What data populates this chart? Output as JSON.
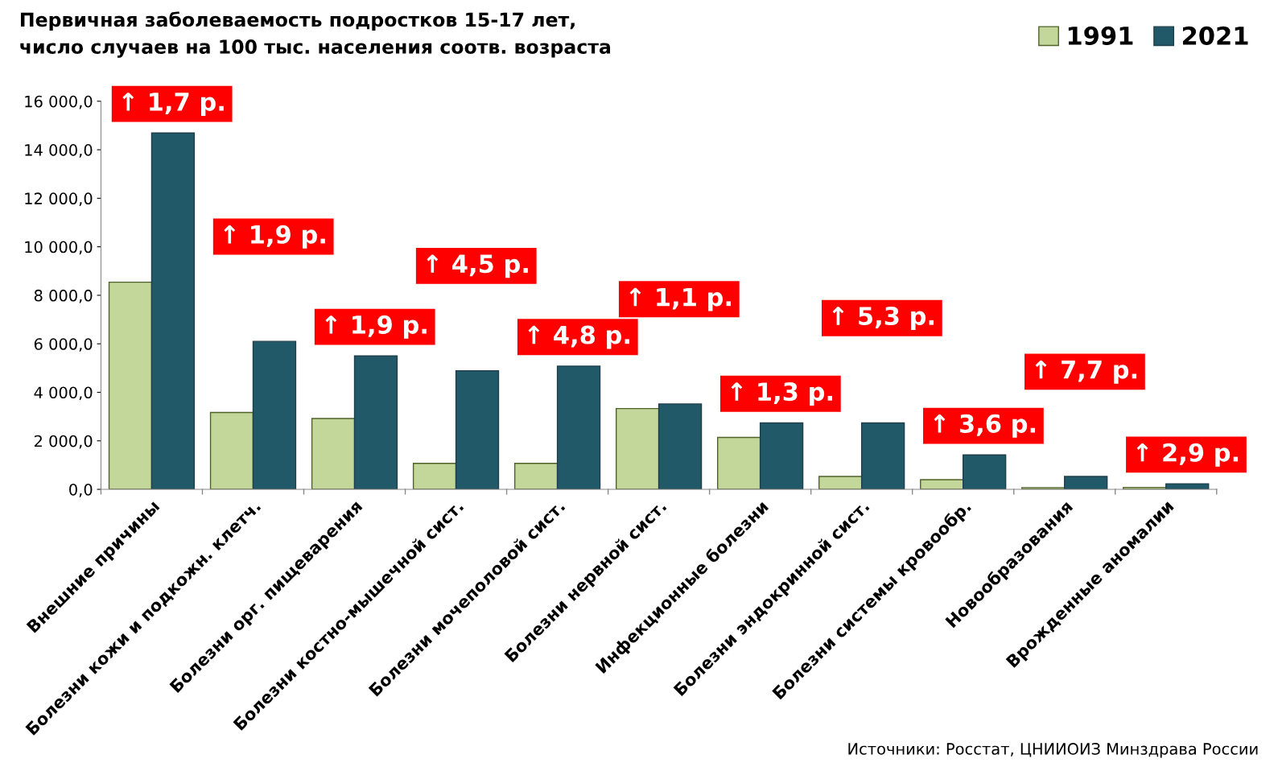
{
  "chart_data": {
    "type": "bar",
    "title": "Первичная заболеваемость подростков 15-17 лет,\nчисло случаев на 100 тыс. населения соотв. возраста",
    "categories": [
      "Внешние причины",
      "Болезни кожи и подкожн. клетч.",
      "Болезни орг. пищеварения",
      "Болезни костно-мышечной сист.",
      "Болезни мочеполовой сист.",
      "Болезни нервной сист.",
      "Инфекционные болезни",
      "Болезни эндокринной сист.",
      "Болезни системы кровообр.",
      "Новообразования",
      "Врожденные аномалии"
    ],
    "series": [
      {
        "name": "1991",
        "color": "#c4d79b",
        "values": [
          8540,
          3170,
          2920,
          1070,
          1070,
          3330,
          2140,
          530,
          400,
          70,
          80
        ]
      },
      {
        "name": "2021",
        "color": "#215968",
        "values": [
          14690,
          6100,
          5500,
          4890,
          5080,
          3520,
          2740,
          2740,
          1420,
          530,
          230
        ]
      }
    ],
    "ylim": [
      0,
      16000
    ],
    "yticks": [
      {
        "value": 0,
        "label": "0,0"
      },
      {
        "value": 2000,
        "label": "2 000,0"
      },
      {
        "value": 4000,
        "label": "4 000,0"
      },
      {
        "value": 6000,
        "label": "6 000,0"
      },
      {
        "value": 8000,
        "label": "8 000,0"
      },
      {
        "value": 10000,
        "label": "10 000,0"
      },
      {
        "value": 12000,
        "label": "12 000,0"
      },
      {
        "value": 14000,
        "label": "14 000,0"
      },
      {
        "value": 16000,
        "label": "16 000,0"
      }
    ],
    "annotations": [
      "↑ 1,7 р.",
      "↑ 1,9 р.",
      "↑ 1,9 р.",
      "↑ 4,5 р.",
      "↑ 4,8 р.",
      "↑ 1,1 р.",
      "↑ 1,3 р.",
      "↑ 5,3 р.",
      "↑ 3,6 р.",
      "↑ 7,7 р.",
      "↑ 2,9 р.",
      "Источники: Росстат, ЦНИИОИЗ Минздрава России"
    ],
    "legend": "top right",
    "grid": false
  }
}
